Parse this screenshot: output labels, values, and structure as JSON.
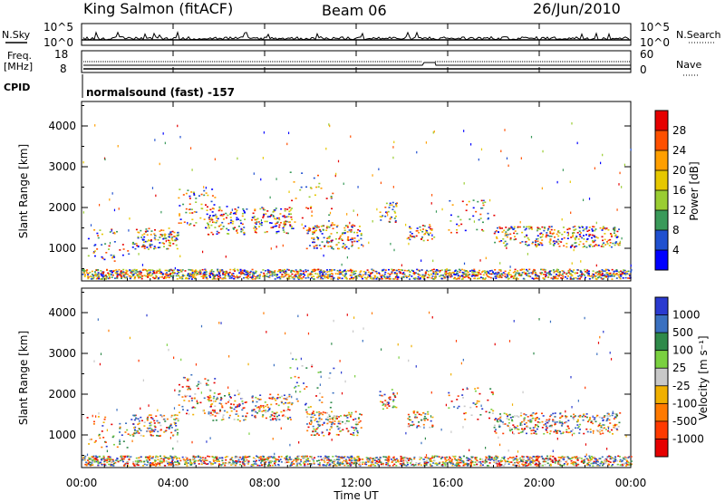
{
  "header": {
    "station": "King Salmon (fitACF)",
    "beam": "Beam 06",
    "date": "26/Jun/2010"
  },
  "top_panels": {
    "nsky_label": "N.Sky",
    "nsearch_label": "N.Search",
    "nsky_ticks": [
      "10^5",
      "10^0"
    ],
    "nsearch_ticks": [
      "10^5",
      "10^0"
    ],
    "freq_label": "Freq.",
    "freq_unit": "[MHz]",
    "freq_ticks": [
      "18",
      "8"
    ],
    "nave_label": "Nave",
    "nave_ticks": [
      "60",
      "0"
    ],
    "cpid_label": "CPID",
    "cpid_value": "normalsound (fast) -157"
  },
  "chart_data": [
    {
      "type": "heatmap",
      "panel": "power",
      "ylabel": "Slant Range [km]",
      "y_ticks": [
        "1000",
        "2000",
        "3000",
        "4000"
      ],
      "ylim": [
        200,
        4600
      ],
      "xlim_hours": [
        0,
        24
      ],
      "colorbar_label": "Power [dB]",
      "colorbar_ticks": [
        "28",
        "24",
        "20",
        "16",
        "12",
        "8",
        "4"
      ],
      "colorbar_colors": [
        "#e60000",
        "#ff5000",
        "#ff9f00",
        "#e6c800",
        "#9acd32",
        "#3a9a5a",
        "#2050d0",
        "#0000ff"
      ]
    },
    {
      "type": "heatmap",
      "panel": "velocity",
      "ylabel": "Slant Range [km]",
      "y_ticks": [
        "1000",
        "2000",
        "3000",
        "4000"
      ],
      "ylim": [
        200,
        4600
      ],
      "xlim_hours": [
        0,
        24
      ],
      "colorbar_label": "Velocity [m s⁻¹]",
      "colorbar_ticks": [
        "1000",
        "500",
        "100",
        "25",
        "-25",
        "-100",
        "-500",
        "-1000"
      ],
      "colorbar_colors": [
        "#2a3ad0",
        "#3a70c0",
        "#2f8a4a",
        "#7ad040",
        "#c8c8c8",
        "#f0b000",
        "#ff7a00",
        "#ff3a00",
        "#e60000"
      ]
    }
  ],
  "x_axis": {
    "ticks": [
      "00:00",
      "04:00",
      "08:00",
      "12:00",
      "16:00",
      "20:00",
      "00:00"
    ],
    "label": "Time UT"
  }
}
